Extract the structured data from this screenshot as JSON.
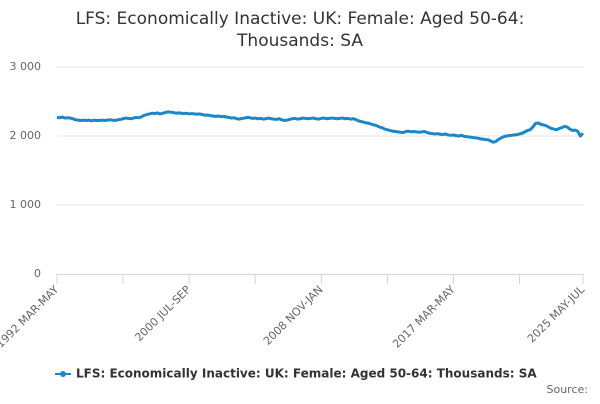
{
  "chart_data": {
    "type": "line",
    "title": "LFS: Economically Inactive: UK: Female: Aged 50-64:",
    "subtitle": "Thousands: SA",
    "source": "Source:",
    "ylim": [
      0,
      3000
    ],
    "yticks": [
      {
        "value": 0,
        "label": "0"
      },
      {
        "value": 1000,
        "label": "1 000"
      },
      {
        "value": 2000,
        "label": "2 000"
      },
      {
        "value": 3000,
        "label": "3 000"
      }
    ],
    "grid": true,
    "legend": "bottom",
    "categories": [
      "1992 MAR-MAY",
      null,
      null,
      null,
      null,
      null,
      null,
      null,
      null,
      null,
      null,
      null,
      null,
      null,
      null,
      null,
      null,
      null,
      null,
      null,
      null,
      null,
      null,
      null,
      null,
      null,
      null,
      null,
      null,
      null,
      null,
      null,
      null,
      null,
      null,
      null,
      null,
      null,
      null,
      null,
      null,
      null,
      null,
      null,
      null,
      null,
      null,
      null,
      null,
      null,
      "2000 JUL-SEP",
      null,
      null,
      null,
      null,
      null,
      null,
      null,
      null,
      null,
      null,
      null,
      null,
      null,
      null,
      null,
      null,
      null,
      null,
      null,
      null,
      null,
      null,
      null,
      null,
      null,
      null,
      null,
      null,
      null,
      null,
      null,
      null,
      null,
      null,
      null,
      null,
      null,
      null,
      null,
      null,
      null,
      null,
      null,
      null,
      null,
      null,
      null,
      null,
      null,
      "2008 NOV-JAN",
      null,
      null,
      null,
      null,
      null,
      null,
      null,
      null,
      null,
      null,
      null,
      null,
      null,
      null,
      null,
      null,
      null,
      null,
      null,
      null,
      null,
      null,
      null,
      null,
      null,
      null,
      null,
      null,
      null,
      null,
      null,
      null,
      null,
      null,
      null,
      null,
      null,
      null,
      null,
      null,
      null,
      null,
      null,
      null,
      null,
      null,
      null,
      null,
      null,
      "2017 MAR-MAY",
      null,
      null,
      null,
      null,
      null,
      null,
      null,
      null,
      null,
      null,
      null,
      null,
      null,
      null,
      null,
      null,
      null,
      null,
      null,
      null,
      null,
      null,
      null,
      null,
      null,
      null,
      null,
      null,
      null,
      null,
      null,
      null,
      null,
      null,
      null,
      null,
      null,
      null,
      null,
      null,
      null,
      null,
      null,
      null,
      null,
      null,
      null,
      null,
      "2025 MAY-JUL"
    ],
    "series": [
      {
        "name": "LFS: Economically Inactive: UK: Female: Aged 50-64: Thousands: SA",
        "color": "#1b87c9",
        "values": [
          2270,
          2265,
          2275,
          2260,
          2265,
          2260,
          2250,
          2235,
          2230,
          2225,
          2230,
          2225,
          2230,
          2220,
          2230,
          2225,
          2225,
          2230,
          2225,
          2230,
          2235,
          2230,
          2225,
          2235,
          2240,
          2250,
          2260,
          2255,
          2250,
          2260,
          2270,
          2265,
          2280,
          2300,
          2310,
          2320,
          2330,
          2325,
          2335,
          2320,
          2330,
          2340,
          2350,
          2345,
          2340,
          2330,
          2335,
          2330,
          2325,
          2330,
          2320,
          2325,
          2320,
          2315,
          2320,
          2310,
          2300,
          2305,
          2295,
          2290,
          2285,
          2290,
          2280,
          2285,
          2275,
          2270,
          2260,
          2265,
          2250,
          2245,
          2255,
          2260,
          2270,
          2265,
          2255,
          2260,
          2250,
          2255,
          2245,
          2250,
          2260,
          2250,
          2245,
          2240,
          2250,
          2235,
          2225,
          2230,
          2240,
          2250,
          2255,
          2245,
          2250,
          2260,
          2255,
          2250,
          2255,
          2260,
          2250,
          2245,
          2255,
          2260,
          2250,
          2255,
          2260,
          2255,
          2250,
          2255,
          2260,
          2250,
          2255,
          2245,
          2250,
          2240,
          2220,
          2210,
          2200,
          2190,
          2185,
          2170,
          2160,
          2150,
          2130,
          2120,
          2100,
          2090,
          2080,
          2070,
          2065,
          2060,
          2055,
          2050,
          2065,
          2070,
          2060,
          2065,
          2060,
          2055,
          2060,
          2065,
          2050,
          2040,
          2035,
          2030,
          2035,
          2025,
          2020,
          2030,
          2015,
          2010,
          2015,
          2005,
          2000,
          2010,
          1995,
          1990,
          1985,
          1980,
          1975,
          1970,
          1960,
          1955,
          1950,
          1945,
          1930,
          1910,
          1920,
          1950,
          1970,
          1990,
          2000,
          2005,
          2010,
          2015,
          2020,
          2030,
          2040,
          2060,
          2080,
          2090,
          2130,
          2180,
          2190,
          2170,
          2160,
          2150,
          2130,
          2110,
          2100,
          2090,
          2110,
          2120,
          2140,
          2130,
          2100,
          2080,
          2085,
          2070,
          2000,
          2040
        ]
      }
    ]
  }
}
